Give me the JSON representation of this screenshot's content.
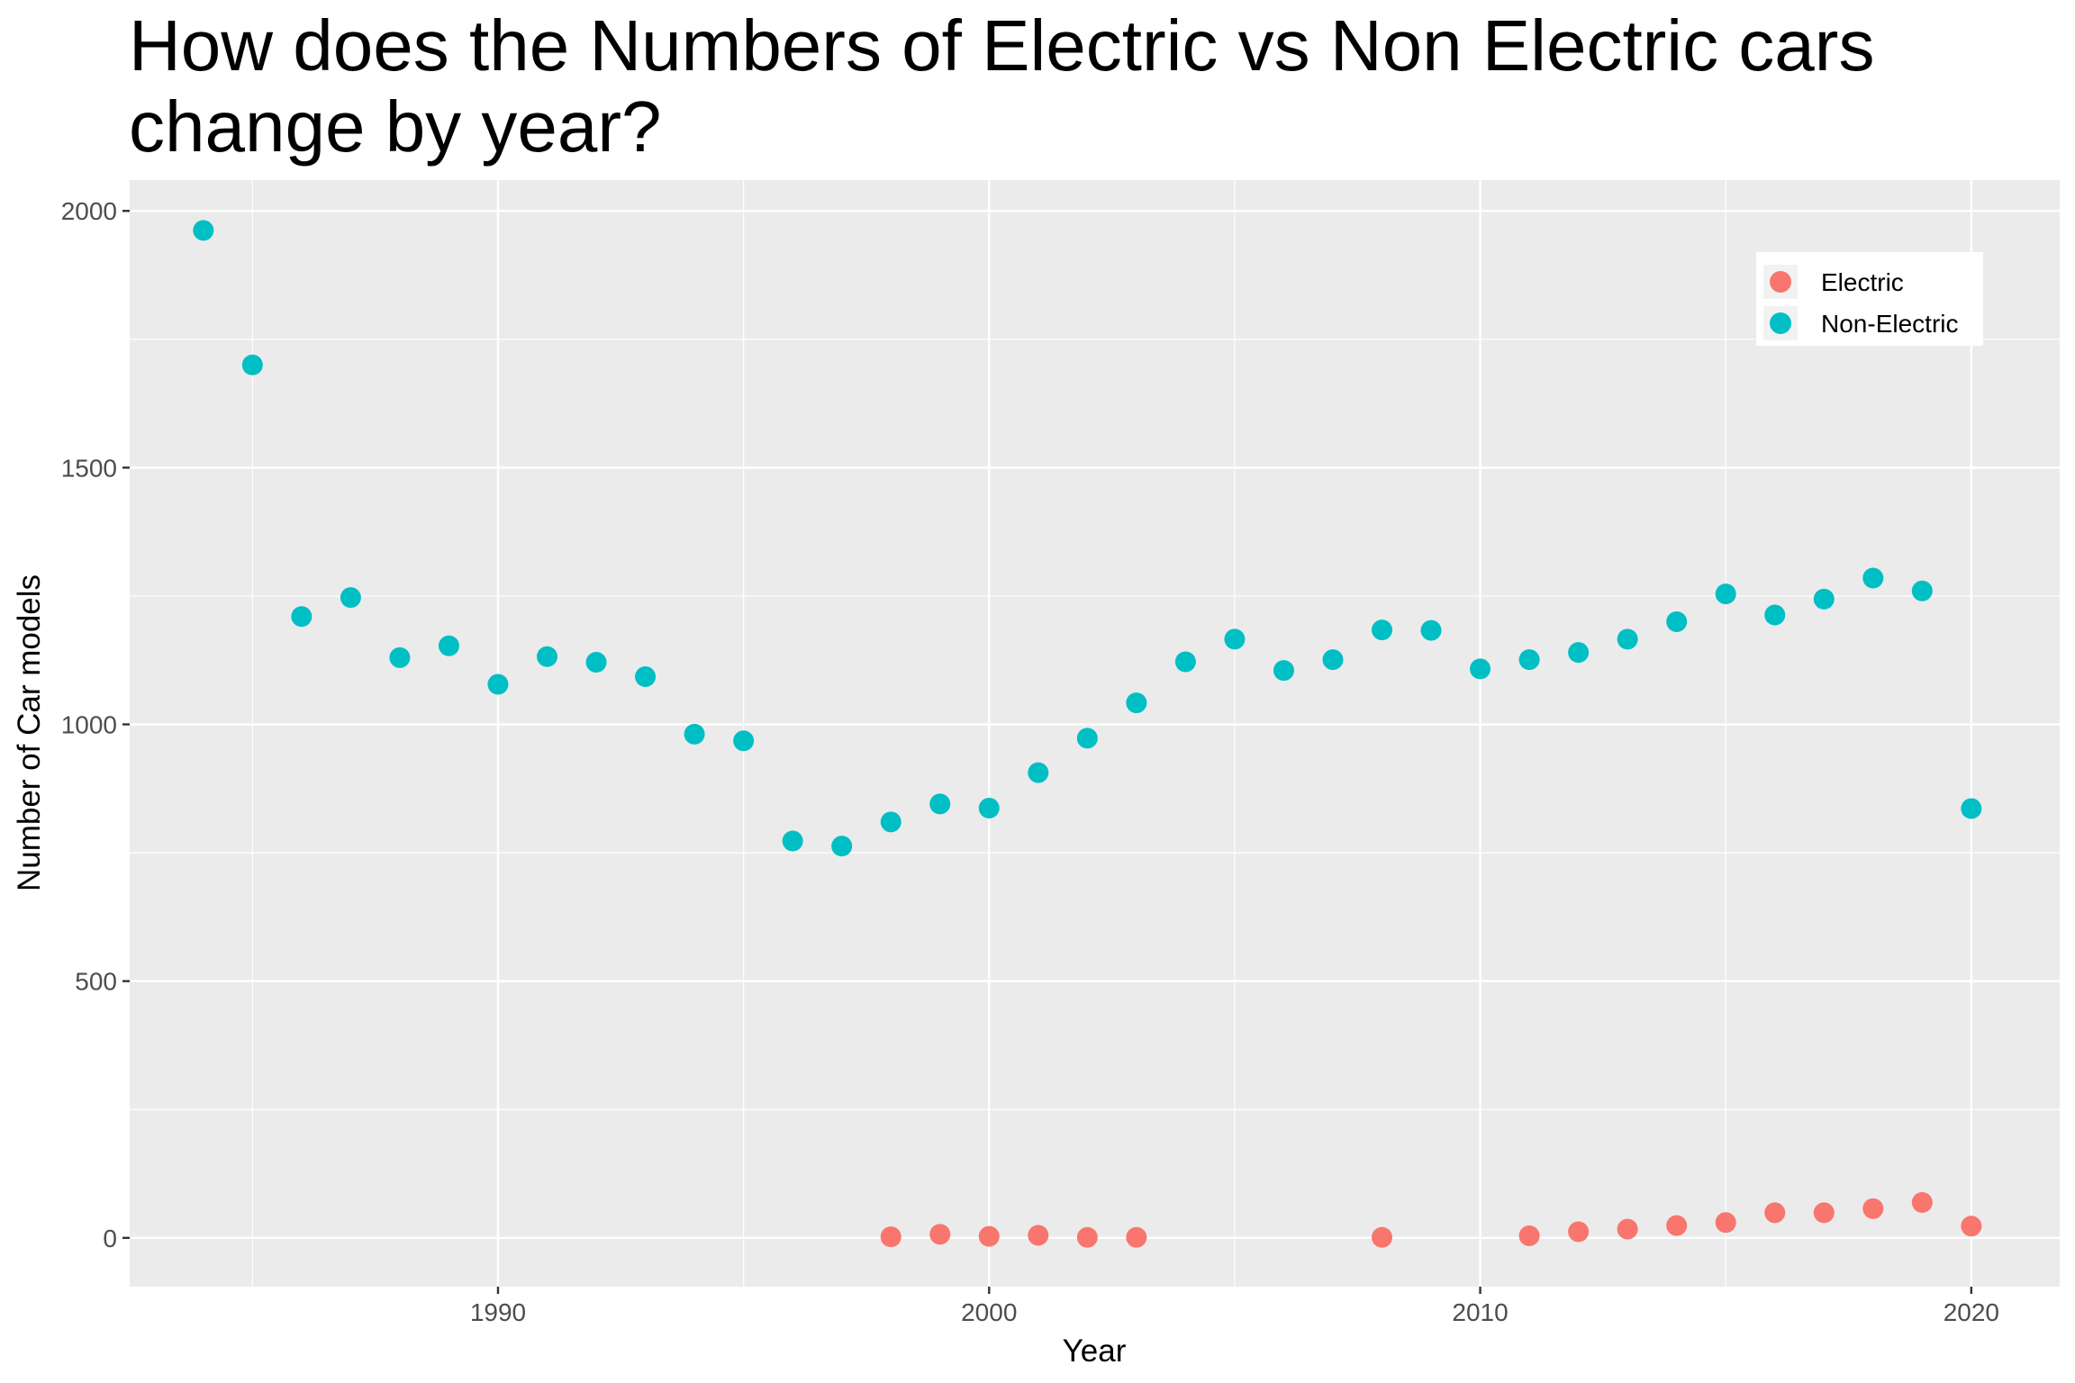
{
  "chart_data": {
    "type": "scatter",
    "title": "How does the Numbers of Electric vs Non Electric cars change by year?",
    "xlabel": "Year",
    "ylabel": "Number of Car models",
    "xlim": [
      1982.5,
      2021.8
    ],
    "ylim": [
      -95,
      2060
    ],
    "x_ticks": [
      1990,
      2000,
      2010,
      2020
    ],
    "y_ticks": [
      0,
      500,
      1000,
      1500,
      2000
    ],
    "grid": true,
    "legend_position": "top-right",
    "series": [
      {
        "name": "Electric",
        "color": "#F8766D",
        "points": [
          {
            "x": 1998,
            "y": 2
          },
          {
            "x": 1999,
            "y": 7
          },
          {
            "x": 2000,
            "y": 3
          },
          {
            "x": 2001,
            "y": 5
          },
          {
            "x": 2002,
            "y": 1
          },
          {
            "x": 2003,
            "y": 1
          },
          {
            "x": 2008,
            "y": 1
          },
          {
            "x": 2011,
            "y": 4
          },
          {
            "x": 2012,
            "y": 12
          },
          {
            "x": 2013,
            "y": 17
          },
          {
            "x": 2014,
            "y": 24
          },
          {
            "x": 2015,
            "y": 30
          },
          {
            "x": 2016,
            "y": 49
          },
          {
            "x": 2017,
            "y": 49
          },
          {
            "x": 2018,
            "y": 57
          },
          {
            "x": 2019,
            "y": 69
          },
          {
            "x": 2020,
            "y": 23
          }
        ]
      },
      {
        "name": "Non-Electric",
        "color": "#00BFC4",
        "points": [
          {
            "x": 1984,
            "y": 1962
          },
          {
            "x": 1985,
            "y": 1700
          },
          {
            "x": 1986,
            "y": 1210
          },
          {
            "x": 1987,
            "y": 1247
          },
          {
            "x": 1988,
            "y": 1130
          },
          {
            "x": 1989,
            "y": 1153
          },
          {
            "x": 1990,
            "y": 1078
          },
          {
            "x": 1991,
            "y": 1132
          },
          {
            "x": 1992,
            "y": 1121
          },
          {
            "x": 1993,
            "y": 1093
          },
          {
            "x": 1994,
            "y": 981
          },
          {
            "x": 1995,
            "y": 968
          },
          {
            "x": 1996,
            "y": 773
          },
          {
            "x": 1997,
            "y": 763
          },
          {
            "x": 1998,
            "y": 810
          },
          {
            "x": 1999,
            "y": 845
          },
          {
            "x": 2000,
            "y": 837
          },
          {
            "x": 2001,
            "y": 906
          },
          {
            "x": 2002,
            "y": 973
          },
          {
            "x": 2003,
            "y": 1042
          },
          {
            "x": 2004,
            "y": 1122
          },
          {
            "x": 2005,
            "y": 1166
          },
          {
            "x": 2006,
            "y": 1105
          },
          {
            "x": 2007,
            "y": 1126
          },
          {
            "x": 2008,
            "y": 1184
          },
          {
            "x": 2009,
            "y": 1183
          },
          {
            "x": 2010,
            "y": 1108
          },
          {
            "x": 2011,
            "y": 1126
          },
          {
            "x": 2012,
            "y": 1140
          },
          {
            "x": 2013,
            "y": 1166
          },
          {
            "x": 2014,
            "y": 1200
          },
          {
            "x": 2015,
            "y": 1254
          },
          {
            "x": 2016,
            "y": 1213
          },
          {
            "x": 2017,
            "y": 1244
          },
          {
            "x": 2018,
            "y": 1285
          },
          {
            "x": 2019,
            "y": 1260
          },
          {
            "x": 2020,
            "y": 836
          }
        ]
      }
    ]
  }
}
